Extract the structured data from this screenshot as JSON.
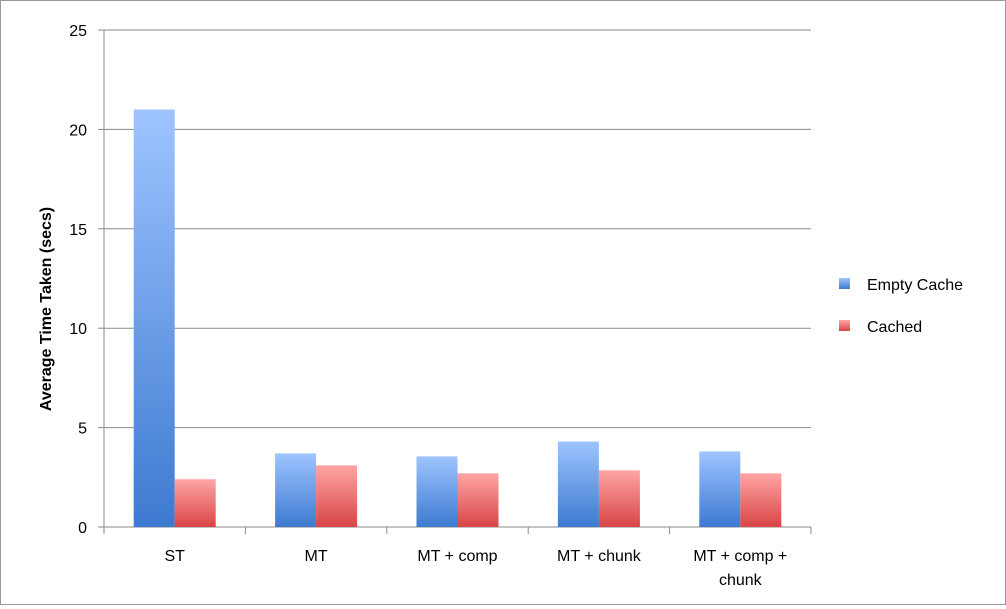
{
  "chart_data": {
    "type": "bar",
    "title": "",
    "xlabel": "",
    "ylabel": "Average Time Taken (secs)",
    "categories": [
      "ST",
      "MT",
      "MT + comp",
      "MT + chunk",
      "MT + comp + chunk"
    ],
    "category_lines": [
      [
        "ST"
      ],
      [
        "MT"
      ],
      [
        "MT + comp"
      ],
      [
        "MT + chunk"
      ],
      [
        "MT + comp +",
        "chunk"
      ]
    ],
    "series": [
      {
        "name": "Empty Cache",
        "values": [
          21.0,
          3.7,
          3.55,
          4.3,
          3.8
        ],
        "color": "#4a86d8"
      },
      {
        "name": "Cached",
        "values": [
          2.4,
          3.1,
          2.7,
          2.85,
          2.7
        ],
        "color": "#e05a5a"
      }
    ],
    "ylim": [
      0,
      25
    ],
    "yticks": [
      0,
      5,
      10,
      15,
      20,
      25
    ],
    "grid": true,
    "legend_position": "right"
  }
}
